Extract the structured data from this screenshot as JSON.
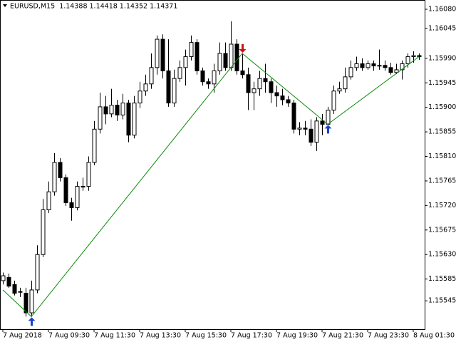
{
  "chart_data": {
    "type": "candlestick",
    "title": "EURUSD,M15  1.14388 1.14418 1.14352 1.14371",
    "categories": [
      "7 Aug 2018",
      null,
      null,
      null,
      null,
      null,
      null,
      null,
      "7 Aug 09:30",
      null,
      null,
      null,
      null,
      null,
      null,
      null,
      "7 Aug 11:30",
      null,
      null,
      null,
      null,
      null,
      null,
      null,
      "7 Aug 13:30",
      null,
      null,
      null,
      null,
      null,
      null,
      null,
      "7 Aug 15:30",
      null,
      null,
      null,
      null,
      null,
      null,
      null,
      "7 Aug 17:30",
      null,
      null,
      null,
      null,
      null,
      null,
      null,
      "7 Aug 19:30",
      null,
      null,
      null,
      null,
      null,
      null,
      null,
      "7 Aug 21:30",
      null,
      null,
      null,
      null,
      null,
      null,
      null,
      "7 Aug 23:30",
      null,
      null,
      null,
      null,
      null,
      null,
      null,
      "8 Aug 01:30",
      null
    ],
    "open": [
      1.15582,
      1.15588,
      1.15575,
      1.15562,
      1.15559,
      1.15523,
      1.15565,
      1.1563,
      1.15712,
      1.15745,
      1.15799,
      1.15771,
      1.15725,
      1.15716,
      1.15755,
      1.15755,
      1.15799,
      1.1586,
      1.15901,
      1.15888,
      1.15904,
      1.15886,
      1.15908,
      1.15849,
      1.15908,
      1.1593,
      1.15943,
      1.15973,
      1.16025,
      1.15967,
      1.15908,
      1.15953,
      1.15973,
      1.15993,
      1.16019,
      1.15967,
      1.15947,
      1.15943,
      1.15967,
      1.15999,
      1.15973,
      1.16016,
      1.15967,
      1.1596,
      1.15927,
      1.15934,
      1.15953,
      1.15947,
      1.15927,
      1.15921,
      1.15914,
      1.15908,
      1.1586,
      1.15862,
      1.1586,
      1.15836,
      1.15875,
      1.15869,
      1.15895,
      1.1593,
      1.15934,
      1.15956,
      1.15973,
      1.1598,
      1.15973,
      1.1598,
      1.15976,
      1.15977,
      1.15973,
      1.15964,
      1.15969,
      1.1598,
      1.15993,
      1.15995
    ],
    "high": [
      1.15597,
      1.15595,
      1.15582,
      1.15569,
      1.15569,
      1.15582,
      1.15647,
      1.15732,
      1.15764,
      1.15816,
      1.15807,
      1.15777,
      1.15734,
      1.15764,
      1.15771,
      1.1581,
      1.15875,
      1.15927,
      1.15921,
      1.15934,
      1.15914,
      1.15925,
      1.15914,
      1.15921,
      1.15947,
      1.1596,
      1.15999,
      1.16032,
      1.16034,
      1.16025,
      1.15969,
      1.15986,
      1.16006,
      1.16032,
      1.16025,
      1.15973,
      1.15953,
      1.1598,
      1.16019,
      1.16019,
      1.16058,
      1.16025,
      1.15999,
      1.15973,
      1.15947,
      1.15967,
      1.1598,
      1.15953,
      1.1594,
      1.15934,
      1.15921,
      1.15914,
      1.15873,
      1.15875,
      1.15878,
      1.15882,
      1.15888,
      1.15901,
      1.1594,
      1.15947,
      1.15973,
      1.15986,
      1.15993,
      1.1599,
      1.15986,
      1.15986,
      1.16006,
      1.15986,
      1.15982,
      1.1598,
      1.15986,
      1.15999,
      1.16003,
      1.15999
    ],
    "low": [
      1.15575,
      1.15569,
      1.15555,
      1.15552,
      1.15516,
      1.15516,
      1.15559,
      1.15625,
      1.15706,
      1.15738,
      1.15764,
      1.15719,
      1.15692,
      1.15711,
      1.15747,
      1.15747,
      1.15794,
      1.15852,
      1.15869,
      1.15882,
      1.15875,
      1.15878,
      1.15836,
      1.15843,
      1.15899,
      1.15921,
      1.15934,
      1.1596,
      1.15953,
      1.15901,
      1.15901,
      1.15947,
      1.1594,
      1.15986,
      1.1596,
      1.1594,
      1.15934,
      1.15927,
      1.1596,
      1.15967,
      1.15967,
      1.1596,
      1.15953,
      1.15895,
      1.15895,
      1.15921,
      1.15927,
      1.15908,
      1.15901,
      1.15904,
      1.15901,
      1.15852,
      1.15849,
      1.15849,
      1.15829,
      1.1582,
      1.15849,
      1.15869,
      1.15888,
      1.15925,
      1.15927,
      1.15951,
      1.15967,
      1.15967,
      1.15969,
      1.15967,
      1.15969,
      1.15967,
      1.1596,
      1.15961,
      1.15951,
      1.15973,
      1.15982,
      1.15987
    ],
    "close": [
      1.15591,
      1.15572,
      1.15559,
      1.15562,
      1.15523,
      1.15565,
      1.1563,
      1.15712,
      1.15745,
      1.15799,
      1.15771,
      1.15725,
      1.15716,
      1.15755,
      1.15755,
      1.15799,
      1.1586,
      1.15901,
      1.15888,
      1.15904,
      1.15886,
      1.15908,
      1.15849,
      1.15908,
      1.1593,
      1.15943,
      1.15973,
      1.16025,
      1.15967,
      1.15908,
      1.15953,
      1.15973,
      1.15993,
      1.16019,
      1.15967,
      1.15947,
      1.15943,
      1.15967,
      1.15999,
      1.15973,
      1.16016,
      1.15967,
      1.1596,
      1.15927,
      1.15934,
      1.15953,
      1.15947,
      1.15927,
      1.15921,
      1.15914,
      1.15908,
      1.1586,
      1.15862,
      1.1586,
      1.15836,
      1.15875,
      1.15869,
      1.15895,
      1.1593,
      1.15934,
      1.15956,
      1.15973,
      1.1598,
      1.15973,
      1.1598,
      1.15976,
      1.15977,
      1.15973,
      1.15964,
      1.15969,
      1.1598,
      1.15993,
      1.15995,
      1.15993
    ],
    "zigzag": {
      "x": [
        0,
        5,
        42,
        57,
        73
      ],
      "values": [
        1.15565,
        1.15516,
        1.15999,
        1.15869,
        1.15993
      ],
      "color": "#0b8a0b"
    },
    "arrows": [
      {
        "x": 5,
        "value": 1.15516,
        "up": true,
        "color": "#1a3fcf"
      },
      {
        "x": 42,
        "value": 1.15999,
        "up": false,
        "color": "#cc1010"
      },
      {
        "x": 57,
        "value": 1.15869,
        "up": true,
        "color": "#1a3fcf"
      }
    ],
    "ylim": [
      1.15493,
      1.16097
    ],
    "yticks": [
      {
        "value": 1.1608,
        "label": "1.16080"
      },
      {
        "value": 1.16045,
        "label": "1.16045"
      },
      {
        "value": 1.1599,
        "label": "1.15990"
      },
      {
        "value": 1.15945,
        "label": "1.15945"
      },
      {
        "value": 1.159,
        "label": "1.15900"
      },
      {
        "value": 1.15855,
        "label": "1.15855"
      },
      {
        "value": 1.1581,
        "label": "1.15810"
      },
      {
        "value": 1.15765,
        "label": "1.15765"
      },
      {
        "value": 1.1572,
        "label": "1.15720"
      },
      {
        "value": 1.15675,
        "label": "1.15675"
      },
      {
        "value": 1.1563,
        "label": "1.15630"
      },
      {
        "value": 1.15585,
        "label": "1.15585"
      },
      {
        "value": 1.15545,
        "label": "1.15545"
      }
    ],
    "grid": false,
    "up_color": "#ffffff",
    "down_color": "#000000"
  }
}
